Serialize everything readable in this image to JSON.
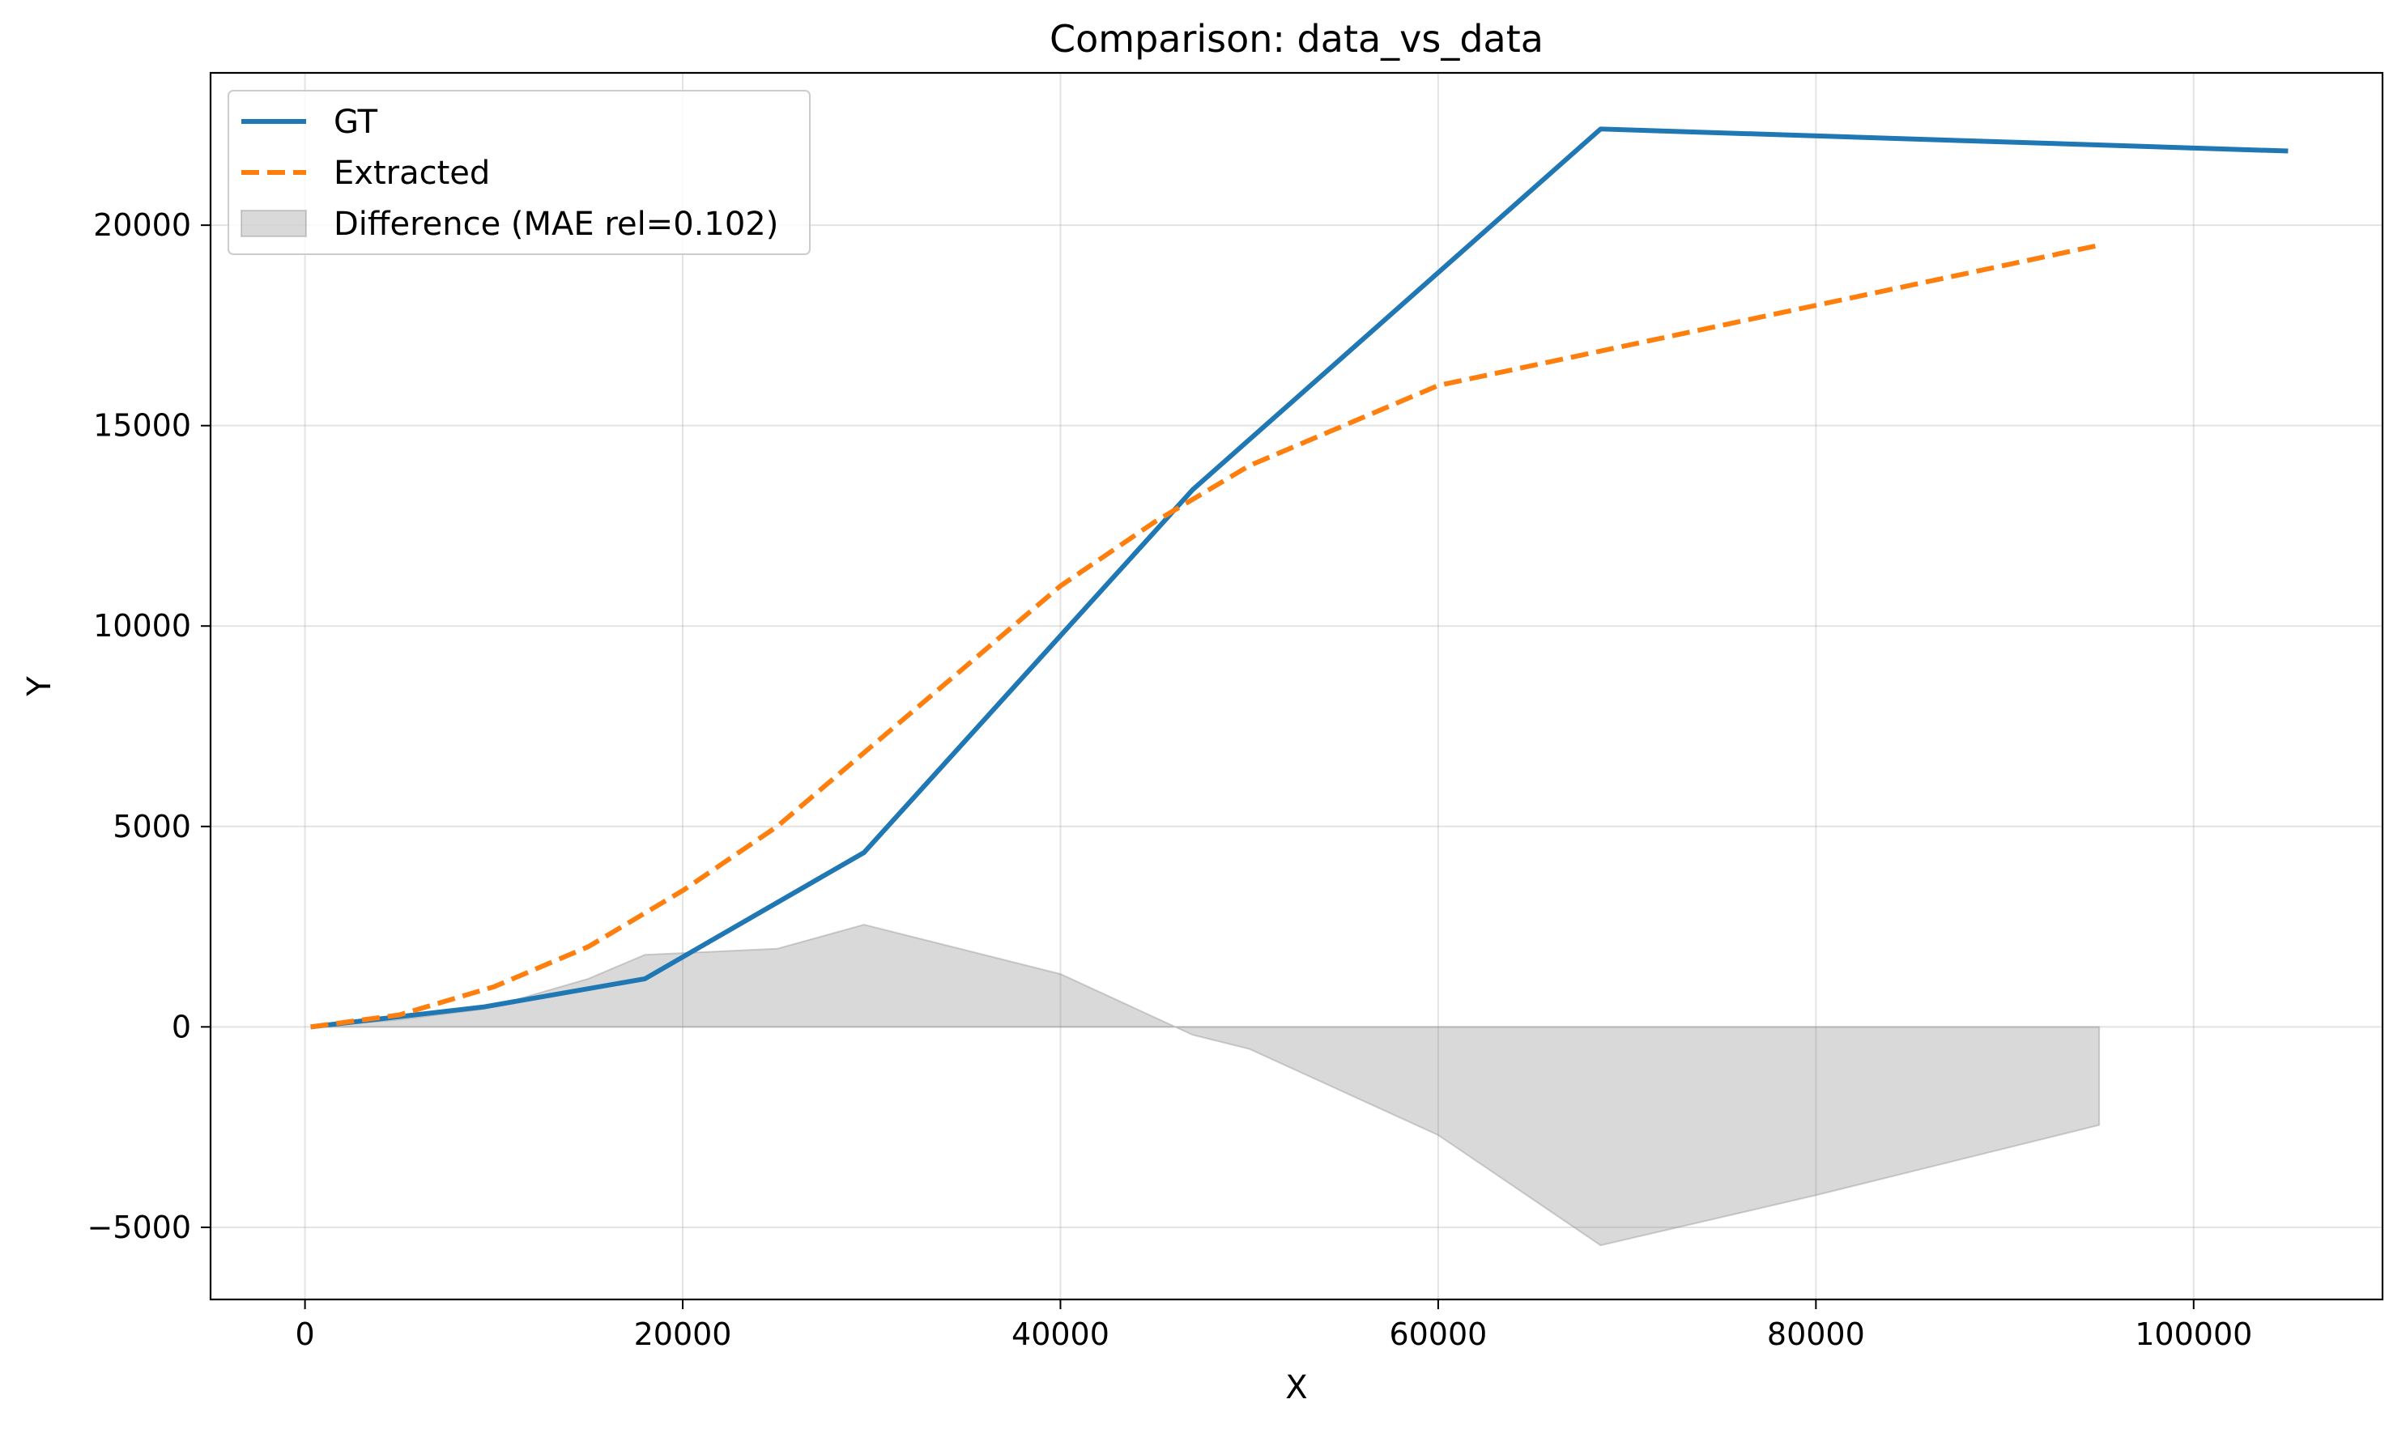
{
  "chart_data": {
    "type": "line",
    "title": "Comparison: data_vs_data",
    "xlabel": "X",
    "ylabel": "Y",
    "xlim": [
      -5000,
      110000
    ],
    "ylim": [
      -6800,
      23800
    ],
    "x_ticks": [
      0,
      20000,
      40000,
      60000,
      80000,
      100000
    ],
    "y_ticks": [
      -5000,
      0,
      5000,
      10000,
      15000,
      20000
    ],
    "x_tick_labels": [
      "0",
      "20000",
      "40000",
      "60000",
      "80000",
      "100000"
    ],
    "y_tick_labels": [
      "−5000",
      "0",
      "5000",
      "10000",
      "15000",
      "20000"
    ],
    "grid": true,
    "legend_position": "top-left",
    "legend": [
      "GT",
      "Extracted",
      "Difference (MAE rel=0.102)"
    ],
    "series": [
      {
        "name": "GT",
        "style": "solid",
        "color": "#1f77b4",
        "x": [
          300,
          9500,
          18000,
          29600,
          47000,
          68600,
          105000
        ],
        "y": [
          0,
          500,
          1200,
          4350,
          13400,
          22400,
          21850
        ]
      },
      {
        "name": "Extracted",
        "style": "dashed",
        "color": "#ff7f0e",
        "x": [
          300,
          5000,
          10000,
          15000,
          20000,
          25000,
          30000,
          35000,
          40000,
          45000,
          50000,
          55000,
          60000,
          70000,
          80000,
          90000,
          95000
        ],
        "y": [
          0,
          300,
          1000,
          2000,
          3400,
          5000,
          7000,
          9000,
          11000,
          12600,
          14000,
          15000,
          16000,
          17000,
          18000,
          19000,
          19500
        ]
      },
      {
        "name": "Difference (MAE rel=0.102)",
        "style": "fill",
        "color": "#808080",
        "x": [
          300,
          5000,
          9500,
          15000,
          18000,
          25000,
          29600,
          40000,
          47000,
          50000,
          60000,
          68600,
          80000,
          95000
        ],
        "y": [
          0,
          180,
          450,
          1200,
          1800,
          1950,
          2550,
          1320,
          -200,
          -550,
          -2700,
          -5450,
          -4200,
          -2450
        ]
      }
    ]
  }
}
